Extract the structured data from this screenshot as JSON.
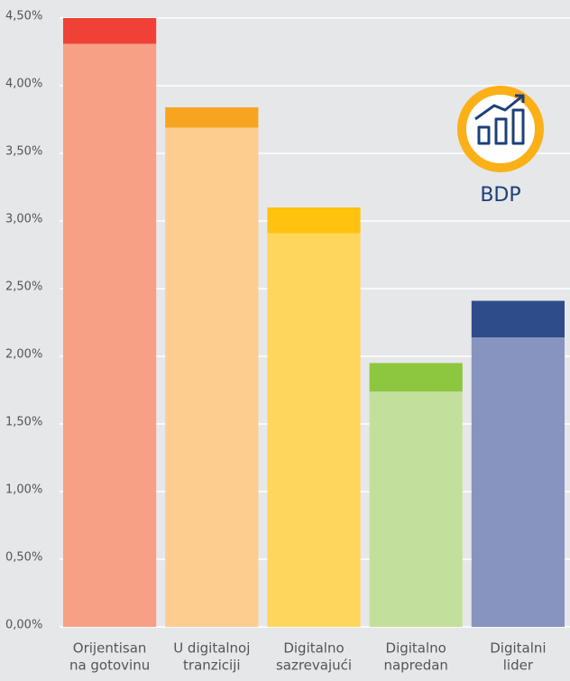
{
  "chart_data": {
    "type": "stacked-bar",
    "categories": [
      [
        "Orijentisan",
        "na gotovinu"
      ],
      [
        "U digitalnoj",
        "tranziciji"
      ],
      [
        "Digitalno",
        "sazrevajući"
      ],
      [
        "Digitalno",
        "napredan"
      ],
      [
        "Digitalni",
        "lider"
      ]
    ],
    "series": [
      {
        "colors": [
          "#f7a086",
          "#fccd8e",
          "#ffd65c",
          "#c3df9c",
          "#8894c0"
        ],
        "values": [
          4.31,
          3.69,
          2.91,
          1.74,
          2.14
        ]
      },
      {
        "colors": [
          "#ef4136",
          "#f7a520",
          "#ffc20e",
          "#8dc63f",
          "#2e4c8a"
        ],
        "values": [
          0.19,
          0.15,
          0.19,
          0.21,
          0.27
        ]
      }
    ],
    "annotation": "BDP",
    "ylim": [
      0,
      4.5
    ],
    "yticks": [
      {
        "value": 0,
        "label": "0,00%"
      },
      {
        "value": 0.5,
        "label": "0,50%"
      },
      {
        "value": 1,
        "label": "1,00%"
      },
      {
        "value": 1.5,
        "label": "1,50%"
      },
      {
        "value": 2,
        "label": "2,00%"
      },
      {
        "value": 2.5,
        "label": "2,50%"
      },
      {
        "value": 3,
        "label": "3,00%"
      },
      {
        "value": 3.5,
        "label": "3,50%"
      },
      {
        "value": 4,
        "label": "4,00%"
      },
      {
        "value": 4.5,
        "label": "4,50%"
      }
    ],
    "grid": true
  }
}
